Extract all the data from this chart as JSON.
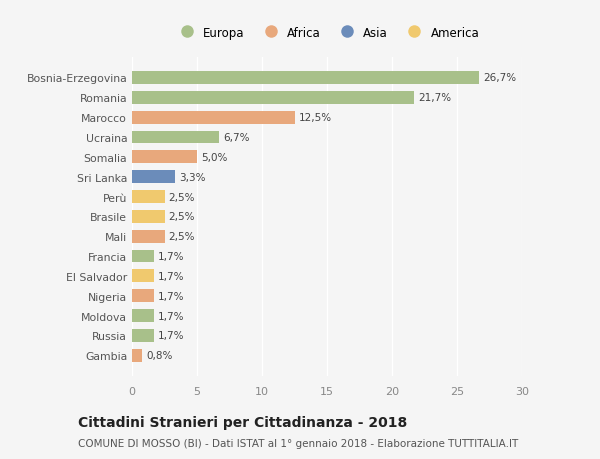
{
  "countries": [
    "Bosnia-Erzegovina",
    "Romania",
    "Marocco",
    "Ucraina",
    "Somalia",
    "Sri Lanka",
    "Perù",
    "Brasile",
    "Mali",
    "Francia",
    "El Salvador",
    "Nigeria",
    "Moldova",
    "Russia",
    "Gambia"
  ],
  "values": [
    26.7,
    21.7,
    12.5,
    6.7,
    5.0,
    3.3,
    2.5,
    2.5,
    2.5,
    1.7,
    1.7,
    1.7,
    1.7,
    1.7,
    0.8
  ],
  "labels": [
    "26,7%",
    "21,7%",
    "12,5%",
    "6,7%",
    "5,0%",
    "3,3%",
    "2,5%",
    "2,5%",
    "2,5%",
    "1,7%",
    "1,7%",
    "1,7%",
    "1,7%",
    "1,7%",
    "0,8%"
  ],
  "continents": [
    "Europa",
    "Europa",
    "Africa",
    "Europa",
    "Africa",
    "Asia",
    "America",
    "America",
    "Africa",
    "Europa",
    "America",
    "Africa",
    "Europa",
    "Europa",
    "Africa"
  ],
  "continent_colors": {
    "Europa": "#a8c08a",
    "Africa": "#e8a87c",
    "Asia": "#6b8cba",
    "America": "#f0c96e"
  },
  "legend_order": [
    "Europa",
    "Africa",
    "Asia",
    "America"
  ],
  "title": "Cittadini Stranieri per Cittadinanza - 2018",
  "subtitle": "COMUNE DI MOSSO (BI) - Dati ISTAT al 1° gennaio 2018 - Elaborazione TUTTITALIA.IT",
  "xlim": [
    0,
    30
  ],
  "xticks": [
    0,
    5,
    10,
    15,
    20,
    25,
    30
  ],
  "background_color": "#f5f5f5",
  "plot_bg_color": "#f5f5f5",
  "grid_color": "#ffffff",
  "bar_height": 0.65,
  "label_fontsize": 7.5,
  "ytick_fontsize": 7.8,
  "xtick_fontsize": 8.0,
  "legend_fontsize": 8.5,
  "title_fontsize": 10,
  "subtitle_fontsize": 7.5
}
